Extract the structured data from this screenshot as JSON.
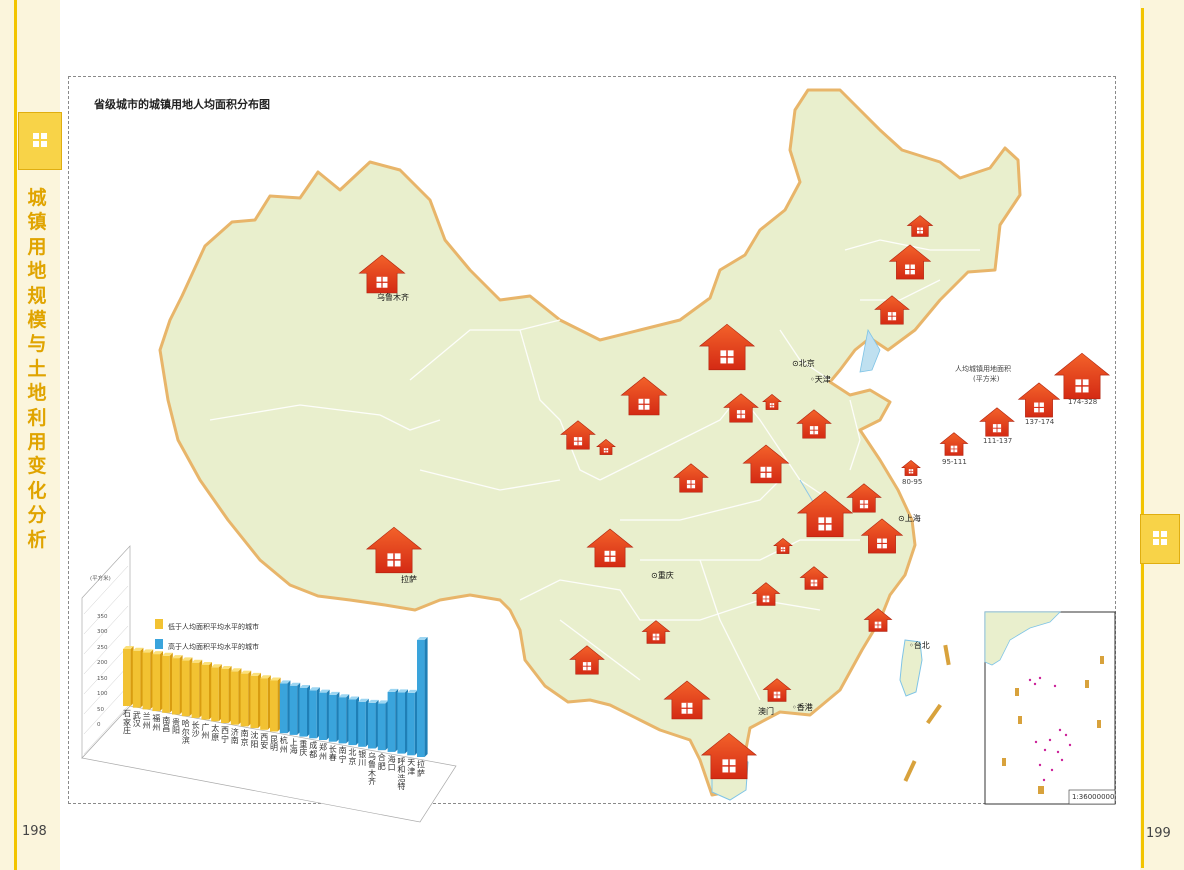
{
  "page": {
    "left_number": "198",
    "right_number": "199",
    "side_title_chars": [
      "城",
      "镇",
      "用",
      "地",
      "规",
      "模",
      "与",
      "土",
      "地",
      "利",
      "用",
      "变",
      "化",
      "分",
      "析"
    ]
  },
  "map": {
    "title": "省级城市的城镇用地人均面积分布图",
    "cities": {
      "urumqi": "乌鲁木齐",
      "lhasa": "拉萨",
      "beijing": "北京",
      "tianjin": "天津",
      "chongqing": "重庆",
      "shanghai": "上海",
      "taipei": "台北",
      "macau": "澳门",
      "hongkong": "香港"
    },
    "scale": "1:36000000"
  },
  "legend": {
    "title": "人均城镇用地面积",
    "unit": "(平方米)",
    "classes": [
      "80-95",
      "95-111",
      "111-137",
      "137-174",
      "174-328"
    ]
  },
  "chart_data": {
    "type": "bar",
    "unit": "(平方米)",
    "yticks": [
      "0",
      "50",
      "100",
      "150",
      "200",
      "250",
      "300",
      "350"
    ],
    "legend_low": "低于人均面积平均水平的城市",
    "legend_high": "高于人均面积平均水平的城市",
    "colors": {
      "low": "#f2c232",
      "high": "#3aa4dc"
    },
    "categories": [
      "石家庄",
      "武汉",
      "兰州",
      "福州",
      "南昌",
      "贵阳",
      "哈尔滨",
      "长沙",
      "广州",
      "太原",
      "西宁",
      "济南",
      "南京",
      "沈阳",
      "西安",
      "昆明",
      "杭州",
      "上海",
      "重庆",
      "成都",
      "郑州",
      "长春",
      "南宁",
      "北京",
      "银川",
      "乌鲁木齐",
      "合肥",
      "海口",
      "呼和浩特",
      "天津",
      "拉萨"
    ],
    "values": [
      95,
      95,
      95,
      95,
      95,
      94,
      93,
      92,
      91,
      90,
      90,
      89,
      88,
      87,
      86,
      85,
      83,
      82,
      81,
      80,
      79,
      78,
      77,
      76,
      75,
      76,
      78,
      100,
      102,
      104,
      195
    ],
    "groups": [
      "low",
      "low",
      "low",
      "low",
      "low",
      "low",
      "low",
      "low",
      "low",
      "low",
      "low",
      "low",
      "low",
      "low",
      "low",
      "low",
      "high",
      "high",
      "high",
      "high",
      "high",
      "high",
      "high",
      "high",
      "high",
      "high",
      "high",
      "high",
      "high",
      "high",
      "high"
    ]
  },
  "colors": {
    "land": "#e9efcd",
    "border": "#e8b56a",
    "house": "#e23a1a",
    "tab": "#f8d348"
  }
}
